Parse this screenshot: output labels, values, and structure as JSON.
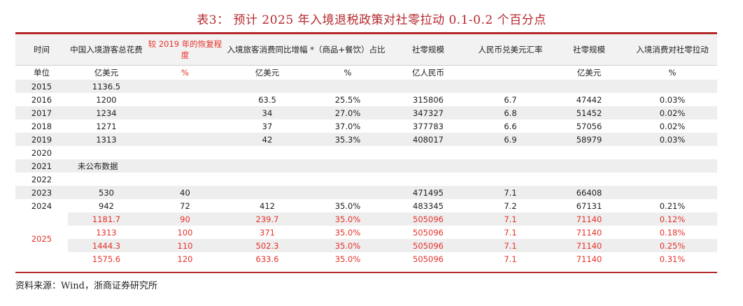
{
  "title": "表3：  预计 2025 年入境退税政策对社零拉动 0.1-0.2 个百分点",
  "headers": [
    "时间",
    "中国入境游客总花费",
    "较 2019 年的恢复程度",
    "入境旅客消费同比增幅",
    "*（商品+餐饮）占比",
    "社零规模",
    "人民币兑美元汇率",
    "社零规模",
    "入境消费对社零拉动"
  ],
  "units": [
    "单位",
    "亿美元",
    "%",
    "亿美元",
    "%",
    "亿人民币",
    "",
    "亿美元",
    "%"
  ],
  "rows": [
    [
      "2015",
      "1136.5",
      "",
      "",
      "",
      "",
      "",
      "",
      ""
    ],
    [
      "2016",
      "1200",
      "",
      "63.5",
      "25.5%",
      "315806",
      "6.7",
      "47442",
      "0.03%"
    ],
    [
      "2017",
      "1234",
      "",
      "34",
      "27.0%",
      "347327",
      "6.8",
      "51452",
      "0.02%"
    ],
    [
      "2018",
      "1271",
      "",
      "37",
      "37.0%",
      "377783",
      "6.6",
      "57056",
      "0.02%"
    ],
    [
      "2019",
      "1313",
      "",
      "42",
      "35.3%",
      "408017",
      "6.9",
      "58979",
      "0.03%"
    ],
    [
      "2020",
      "",
      "",
      "",
      "",
      "",
      "",
      "",
      ""
    ],
    [
      "2021",
      "未公布数据",
      "",
      "",
      "",
      "",
      "",
      "",
      ""
    ],
    [
      "2022",
      "",
      "",
      "",
      "",
      "",
      "",
      "",
      ""
    ],
    [
      "2023",
      "530",
      "40",
      "",
      "",
      "471495",
      "7.1",
      "66408",
      ""
    ],
    [
      "2024",
      "942",
      "72",
      "412",
      "35.0%",
      "483345",
      "7.2",
      "67131",
      "0.21%"
    ]
  ],
  "forecast_year": "2025",
  "forecast_rows": [
    [
      "1181.7",
      "90",
      "239.7",
      "35.0%",
      "505096",
      "7.1",
      "71140",
      "0.12%"
    ],
    [
      "1313",
      "100",
      "371",
      "35.0%",
      "505096",
      "7.1",
      "71140",
      "0.18%"
    ],
    [
      "1444.3",
      "110",
      "502.3",
      "35.0%",
      "505096",
      "7.1",
      "71140",
      "0.25%"
    ],
    [
      "1575.6",
      "120",
      "633.6",
      "35.0%",
      "505096",
      "7.1",
      "71140",
      "0.31%"
    ]
  ],
  "source": "资料来源：Wind，浙商证券研究所",
  "colors": {
    "accent": "#b5282c",
    "highlight": "#e63229",
    "shade": "#eeeeef",
    "header_bg": "#f2f2f2"
  }
}
